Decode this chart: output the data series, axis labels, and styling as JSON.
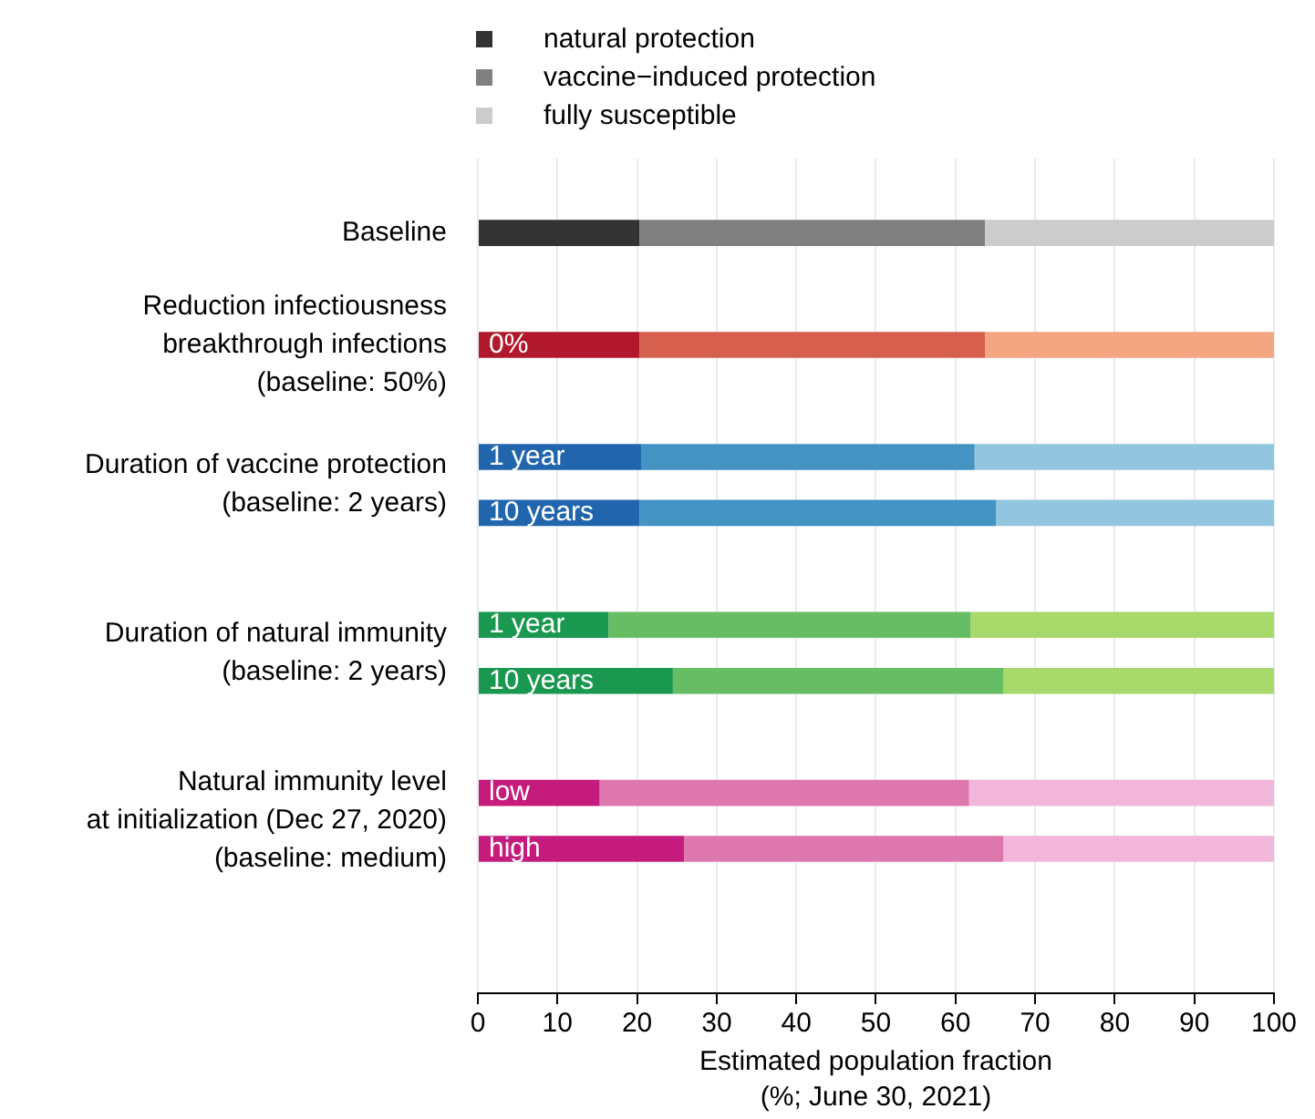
{
  "chart_data": {
    "type": "bar",
    "orientation": "horizontal",
    "stacked": true,
    "categories": [
      null,
      null,
      "0%",
      null,
      "1 year",
      "10 years",
      null,
      "1 year",
      "10 years",
      null,
      "low",
      "high"
    ],
    "series": [
      {
        "name": "natural protection",
        "color": "#333333",
        "colors": [
          "#333333",
          null,
          "#b2182b",
          null,
          "#2166ac",
          "#2166ac",
          null,
          "#1a9850",
          "#1a9850",
          null,
          "#c51b7d",
          "#c51b7d"
        ],
        "values": [
          20.3,
          null,
          20.3,
          null,
          20.5,
          20.3,
          null,
          16.4,
          24.5,
          null,
          15.3,
          25.9
        ]
      },
      {
        "name": "vaccine−induced protection",
        "color": "#808080",
        "colors": [
          "#808080",
          null,
          "#d6604d",
          null,
          "#4393c3",
          "#4393c3",
          null,
          "#66bd63",
          "#66bd63",
          null,
          "#de77ae",
          "#de77ae"
        ],
        "values": [
          43.4,
          null,
          43.4,
          null,
          41.9,
          44.8,
          null,
          45.5,
          41.5,
          null,
          46.4,
          40.1
        ]
      },
      {
        "name": "fully susceptible",
        "color": "#cccccc",
        "colors": [
          "#cccccc",
          null,
          "#f4a582",
          null,
          "#92c5de",
          "#92c5de",
          null,
          "#a6d96a",
          "#a6d96a",
          null,
          "#f1b6da",
          "#f1b6da"
        ],
        "values": [
          36.3,
          null,
          36.3,
          null,
          37.6,
          34.9,
          null,
          38.1,
          34.0,
          null,
          38.3,
          34.0
        ]
      }
    ],
    "xlim": [
      0,
      100
    ],
    "xticks": [
      0,
      10,
      20,
      30,
      40,
      50,
      60,
      70,
      80,
      90,
      100
    ],
    "xlabel": "Estimated population fraction\n(%; June 30, 2021)",
    "annotations": [
      "Baseline",
      "Reduction infectiousness\nbreakthrough infections\n(baseline: 50%)",
      "Duration of vaccine protection\n(baseline: 2 years)",
      "Duration of natural immunity\n(baseline: 2 years)",
      "Natural immunity level\nat initialization (Dec 27, 2020)\n(baseline: medium)"
    ],
    "grid": "x",
    "legend": "top",
    "tick_labels": "x"
  }
}
